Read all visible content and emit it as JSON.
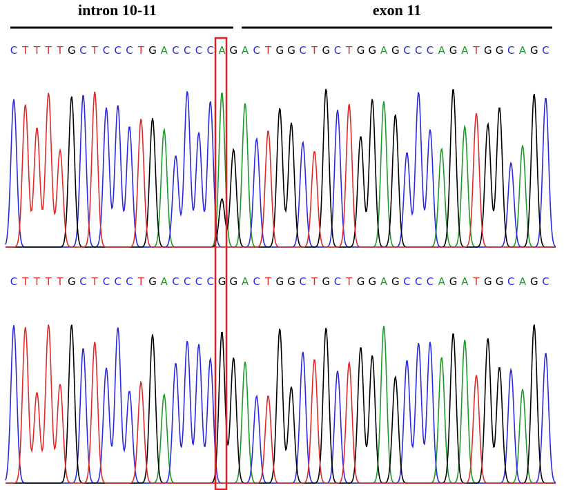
{
  "header": {
    "left": "intron 10-11",
    "right": "exon 11"
  },
  "base_colors": {
    "A": "#1f9a2a",
    "C": "#2a2ae0",
    "G": "#000000",
    "T": "#e02a2a"
  },
  "rows": [
    {
      "sequence": [
        "C",
        "T",
        "T",
        "T",
        "T",
        "G",
        "C",
        "T",
        "C",
        "C",
        "C",
        "T",
        "G",
        "A",
        "C",
        "C",
        "C",
        "C",
        "A",
        "G",
        "A",
        "C",
        "T",
        "G",
        "G",
        "C",
        "T",
        "G",
        "C",
        "T",
        "G",
        "G",
        "A",
        "G",
        "C",
        "C",
        "C",
        "A",
        "G",
        "A",
        "T",
        "G",
        "G",
        "C",
        "A",
        "G",
        "C"
      ]
    },
    {
      "sequence": [
        "C",
        "T",
        "T",
        "T",
        "T",
        "G",
        "C",
        "T",
        "C",
        "C",
        "C",
        "T",
        "G",
        "A",
        "C",
        "C",
        "C",
        "C",
        "G",
        "G",
        "A",
        "C",
        "T",
        "G",
        "G",
        "C",
        "T",
        "G",
        "C",
        "T",
        "G",
        "G",
        "A",
        "G",
        "C",
        "C",
        "C",
        "A",
        "G",
        "A",
        "T",
        "G",
        "G",
        "C",
        "A",
        "G",
        "C"
      ]
    }
  ]
}
